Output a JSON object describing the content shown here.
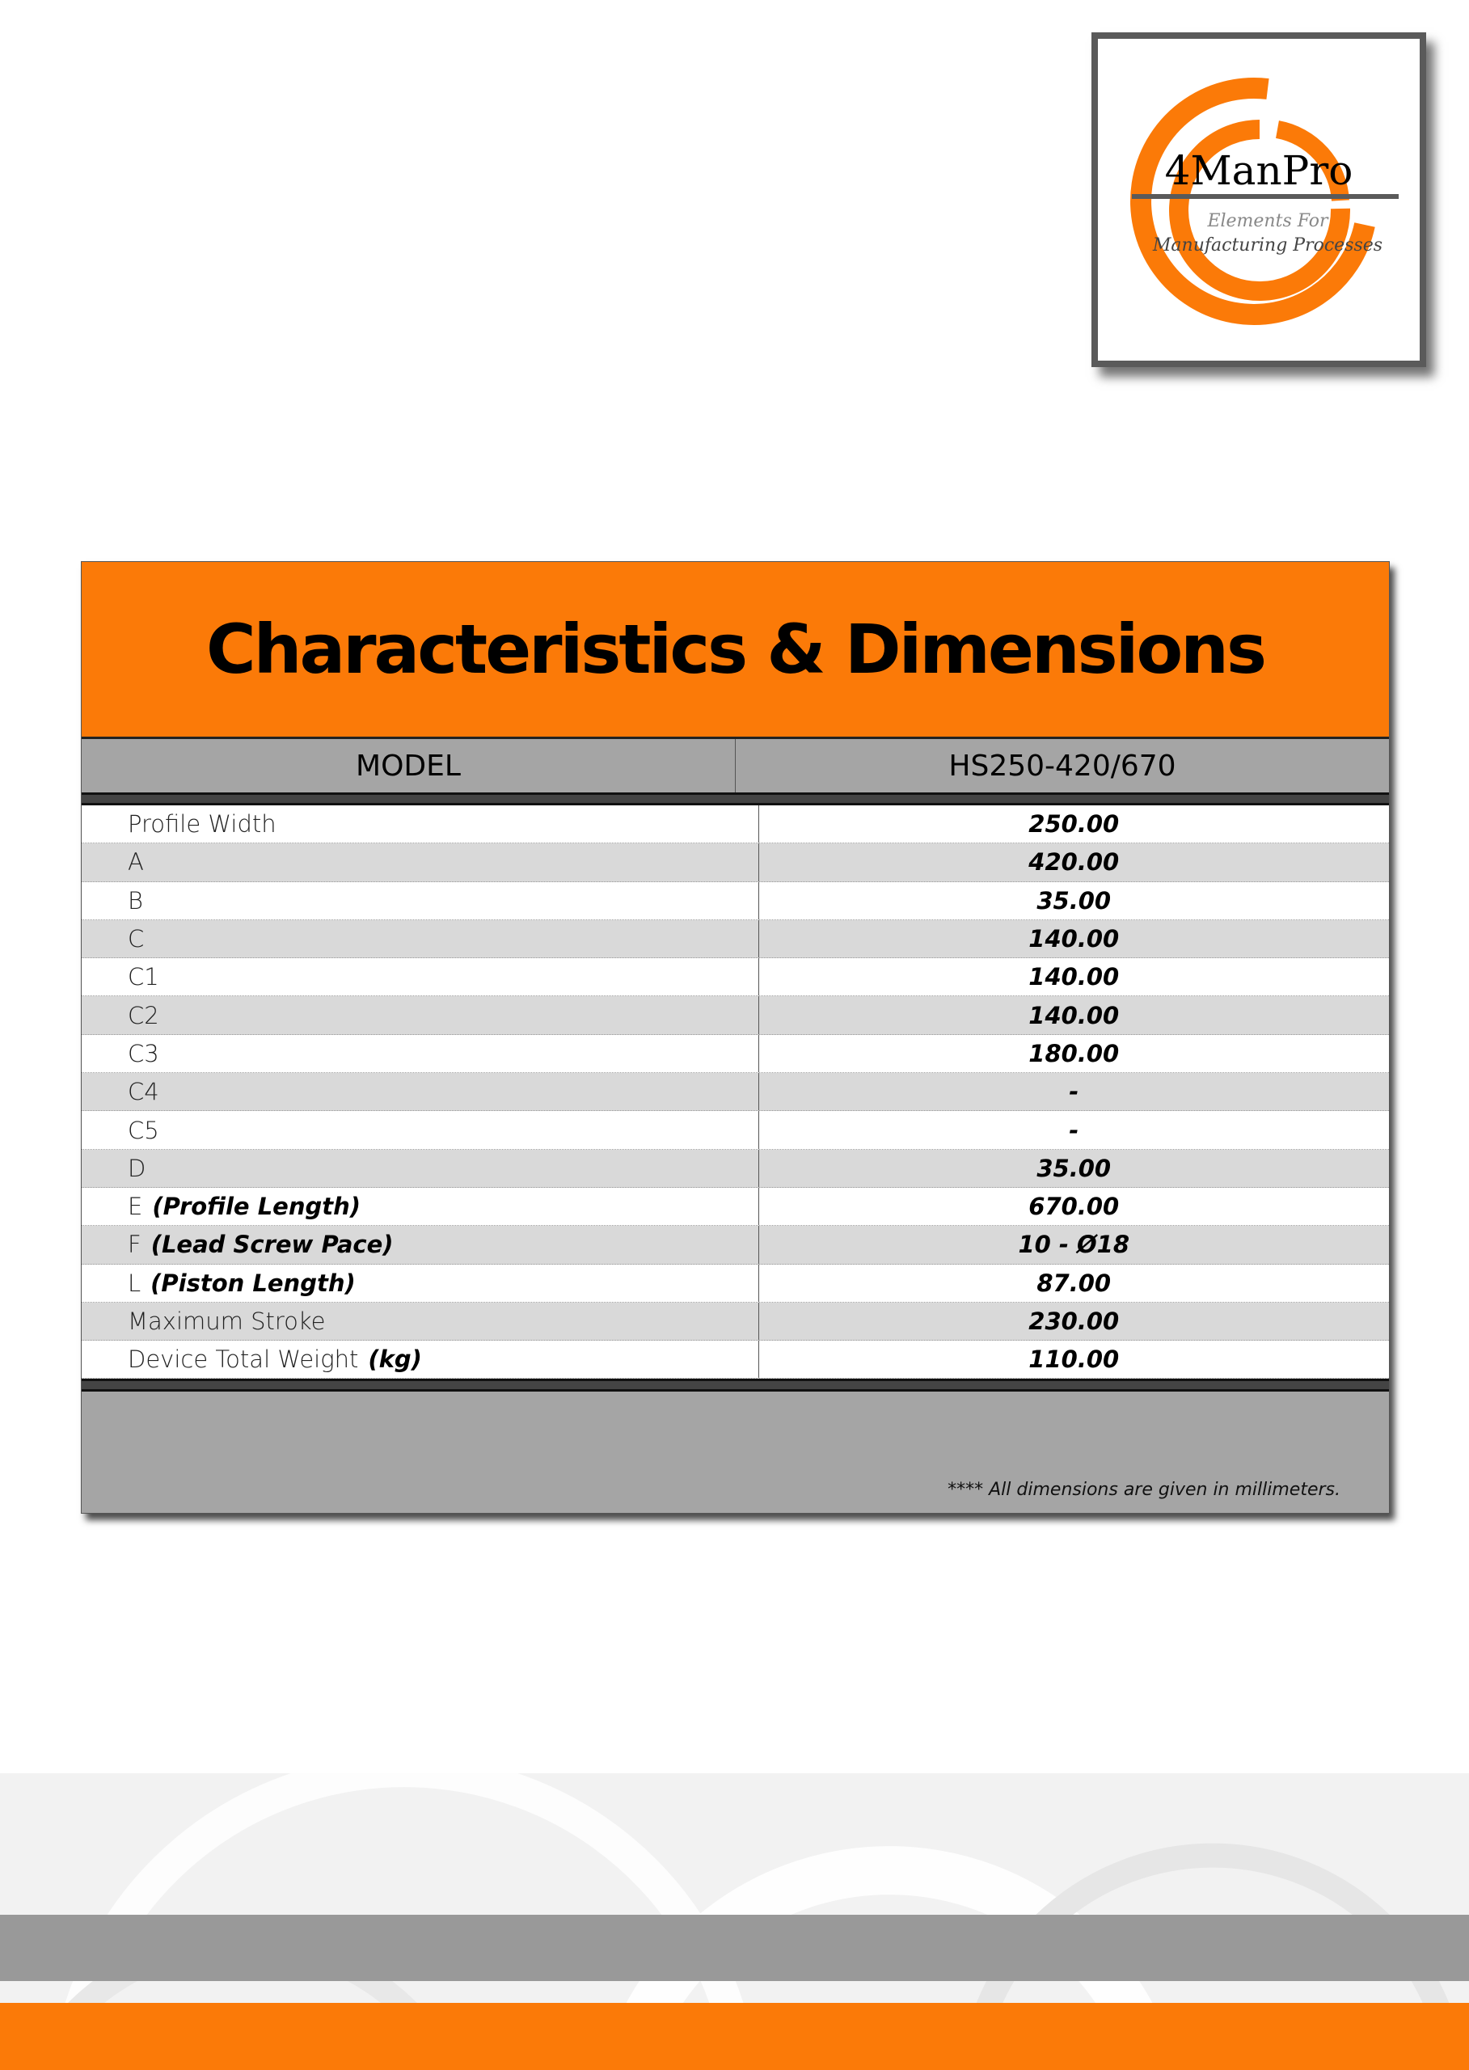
{
  "logo": {
    "brand": "4ManPro",
    "tagline_line1": "Elements For",
    "tagline_line2": "Manufacturing Processes",
    "accent_color": "#fb7a08"
  },
  "table": {
    "title": "Characteristics & Dimensions",
    "header": {
      "label": "MODEL",
      "model": "HS250-420/670"
    },
    "rows": [
      {
        "label": "Profile Width",
        "note": "",
        "value": "250.00"
      },
      {
        "label": "A",
        "note": "",
        "value": "420.00"
      },
      {
        "label": "B",
        "note": "",
        "value": "35.00"
      },
      {
        "label": "C",
        "note": "",
        "value": "140.00"
      },
      {
        "label": "C1",
        "note": "",
        "value": "140.00"
      },
      {
        "label": "C2",
        "note": "",
        "value": "140.00"
      },
      {
        "label": "C3",
        "note": "",
        "value": "180.00"
      },
      {
        "label": "C4",
        "note": "",
        "value": "-"
      },
      {
        "label": "C5",
        "note": "",
        "value": "-"
      },
      {
        "label": "D",
        "note": "",
        "value": "35.00"
      },
      {
        "label": "E",
        "note": "(Profile Length)",
        "value": "670.00"
      },
      {
        "label": "F",
        "note": "(Lead Screw Pace)",
        "value": "10 - Ø18"
      },
      {
        "label": "L",
        "note": "(Piston Length)",
        "value": "87.00"
      },
      {
        "label": "Maximum Stroke",
        "note": "",
        "value": "230.00"
      },
      {
        "label": "Device Total Weight",
        "note": "(kg)",
        "value": "110.00"
      }
    ],
    "footnote": "**** All dimensions are given in millimeters."
  },
  "colors": {
    "orange": "#fb7a08",
    "gray": "#a5a5a5",
    "alt_row": "#d9d9d9"
  }
}
